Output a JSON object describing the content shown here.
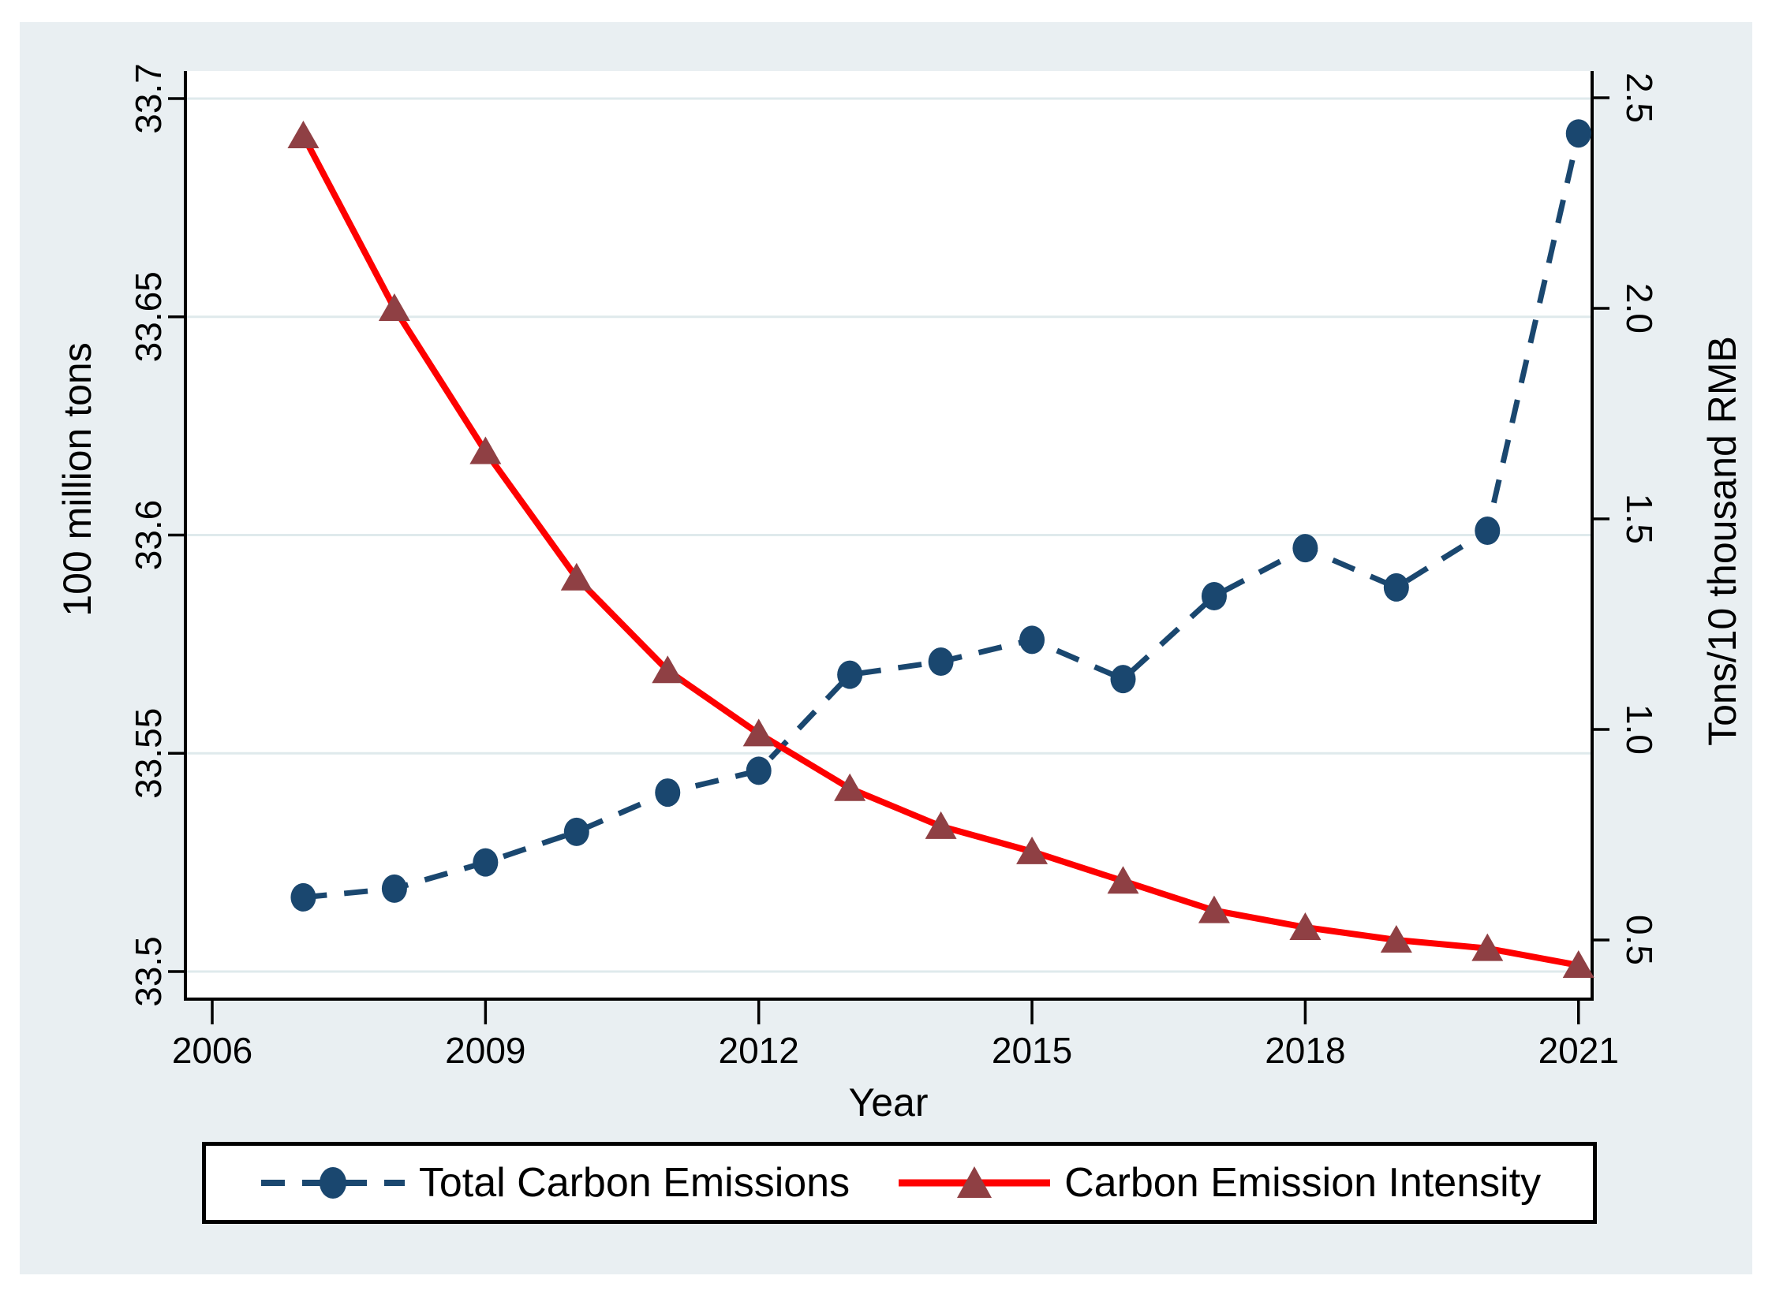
{
  "chart_data": {
    "type": "line",
    "title": "",
    "xlabel": "Year",
    "x": [
      2007,
      2008,
      2009,
      2010,
      2011,
      2012,
      2013,
      2014,
      2015,
      2016,
      2017,
      2018,
      2019,
      2020,
      2021
    ],
    "x_axis": {
      "ticks": [
        2006,
        2009,
        2012,
        2015,
        2018,
        2021
      ],
      "range": [
        2005.7,
        2021.15
      ]
    },
    "left_axis": {
      "label": "100  million tons",
      "tick_labels": [
        "33.5",
        "33.55",
        "33.6",
        "33.65",
        "33.7"
      ],
      "tick_values": [
        33.5,
        33.55,
        33.6,
        33.65,
        33.7
      ],
      "range": [
        33.494,
        33.706
      ]
    },
    "right_axis": {
      "label": "Tons/10 thousand RMB",
      "tick_labels": [
        "0.5",
        "1.0",
        "1.5",
        "2.0",
        "2.5"
      ],
      "tick_values": [
        0.5,
        1.0,
        1.5,
        2.0,
        2.5
      ],
      "range": [
        0.36,
        2.565
      ]
    },
    "grid": true,
    "legend_position": "bottom",
    "series": [
      {
        "name": "Total Carbon Emissions",
        "axis": "left",
        "line_style": "dashed",
        "marker": "circle",
        "line_color": "#1a476f",
        "marker_color": "#1a476f",
        "values": [
          33.517,
          33.519,
          33.525,
          33.532,
          33.541,
          33.546,
          33.568,
          33.571,
          33.576,
          33.567,
          33.586,
          33.597,
          33.588,
          33.601,
          33.692
        ]
      },
      {
        "name": "Carbon Emission Intensity",
        "axis": "right",
        "line_style": "solid",
        "marker": "triangle",
        "line_color": "#fe0000",
        "marker_color": "#8f4044",
        "values": [
          2.41,
          2.0,
          1.66,
          1.36,
          1.14,
          0.99,
          0.86,
          0.77,
          0.71,
          0.64,
          0.57,
          0.53,
          0.5,
          0.48,
          0.44
        ]
      }
    ]
  },
  "colors": {
    "graph_background": "#e9eff2",
    "plot_background": "#ffffff",
    "gridline": "#dfeaec",
    "axis_line": "#000000",
    "navy": "#1a476f",
    "red": "#fe0000",
    "maroon": "#8f4044"
  }
}
